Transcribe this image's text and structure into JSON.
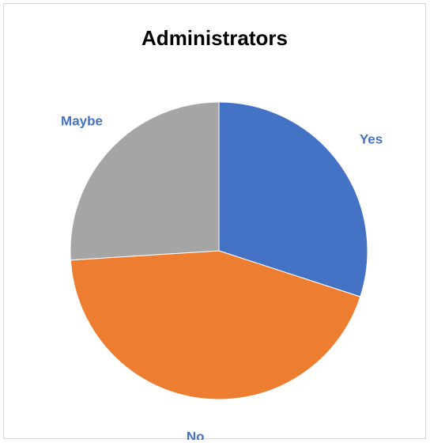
{
  "chart_data": {
    "type": "pie",
    "title": "Administrators",
    "categories": [
      "Yes",
      "No",
      "Maybe"
    ],
    "values": [
      30,
      44,
      26
    ],
    "colors": [
      "#4472c4",
      "#ed7d31",
      "#a5a5a5"
    ],
    "label_color": "#4472c4",
    "legend": "none"
  }
}
